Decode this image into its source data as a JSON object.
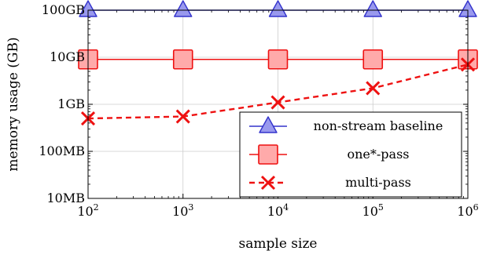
{
  "chart_data": {
    "type": "line",
    "xlabel": "sample size",
    "ylabel": "memory usage (GB)",
    "x_scale": "log",
    "y_scale": "log",
    "x": [
      100,
      1000,
      10000,
      100000,
      1000000
    ],
    "xlim": [
      100,
      1000000
    ],
    "ylim": [
      0.01,
      100
    ],
    "x_tick_values": [
      100,
      1000,
      10000,
      100000,
      1000000
    ],
    "x_tick_bases": [
      "10",
      "10",
      "10",
      "10",
      "10"
    ],
    "x_tick_exponents": [
      "2",
      "3",
      "4",
      "5",
      "6"
    ],
    "y_tick_values": [
      0.01,
      0.1,
      1,
      10,
      100
    ],
    "y_tick_labels": [
      "10MB",
      "100MB",
      "1GB",
      "10GB",
      "100GB"
    ],
    "grid": true,
    "legend_position": "bottom-right",
    "series": [
      {
        "name": "non-stream baseline",
        "values": [
          100,
          100,
          100,
          100,
          100
        ],
        "color": "#3333cc",
        "fill": "#9999ee",
        "marker": "triangle",
        "line_style": "solid"
      },
      {
        "name": "one*-pass",
        "values": [
          9,
          9,
          9,
          9,
          9
        ],
        "color": "#ee1111",
        "fill": "#ffaaaa",
        "marker": "square",
        "line_style": "solid"
      },
      {
        "name": "multi-pass",
        "values": [
          0.5,
          0.55,
          1.1,
          2.2,
          7
        ],
        "color": "#ee1111",
        "fill": "none",
        "marker": "x",
        "line_style": "dashed"
      }
    ]
  }
}
